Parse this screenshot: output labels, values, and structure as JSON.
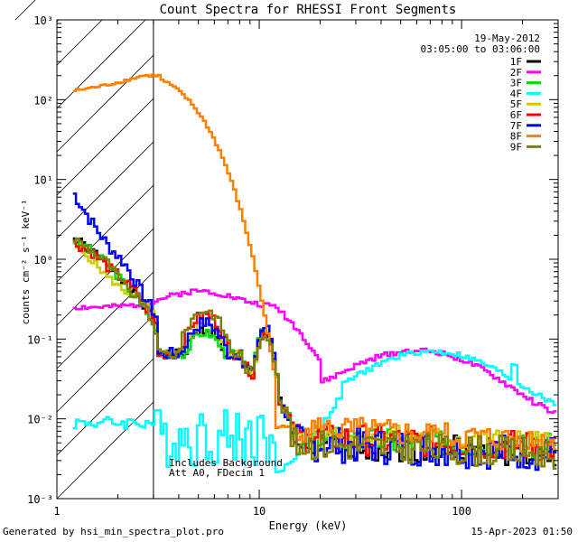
{
  "chart_data": {
    "type": "line",
    "title": "Count Spectra for RHESSI Front Segments",
    "xlabel": "Energy (keV)",
    "ylabel": "counts cm⁻² s⁻¹ keV⁻¹",
    "xscale": "log",
    "yscale": "log",
    "xlim": [
      1,
      300
    ],
    "ylim": [
      0.001,
      1000
    ],
    "x_tick_labels": [
      "1",
      "10",
      "100"
    ],
    "y_tick_labels": [
      "10⁻³",
      "10⁻²",
      "10⁻¹",
      "10⁰",
      "10¹",
      "10²",
      "10³"
    ],
    "date": "19-May-2012",
    "time_range": "03:05:00 to 03:06:00",
    "excluded_region_max_kev": 3,
    "annotations": [
      "Includes Background",
      "Att A0, FDecim 1"
    ],
    "legend_position": "top-right",
    "series": [
      {
        "name": "1F",
        "color": "#000000",
        "shape": "main",
        "low": [
          1.8,
          1.3,
          0.9,
          0.55,
          0.3,
          0.15
        ],
        "bump": 0.13,
        "peak": 0.12,
        "tail": 0.005,
        "noise": 0.28,
        "seed": 1
      },
      {
        "name": "2F",
        "color": "#ff00ff",
        "shape": "flat",
        "seed": 2
      },
      {
        "name": "3F",
        "color": "#00dd00",
        "shape": "main",
        "low": [
          1.7,
          1.3,
          0.85,
          0.5,
          0.28,
          0.13
        ],
        "bump": 0.12,
        "peak": 0.13,
        "tail": 0.006,
        "noise": 0.25,
        "seed": 3
      },
      {
        "name": "4F",
        "color": "#00ffff",
        "shape": "cyan",
        "seed": 4
      },
      {
        "name": "5F",
        "color": "#cccc00",
        "shape": "main",
        "low": [
          1.5,
          1.0,
          0.6,
          0.4,
          0.32,
          0.17
        ],
        "bump": 0.16,
        "peak": 0.12,
        "tail": 0.007,
        "noise": 0.2,
        "seed": 5
      },
      {
        "name": "6F",
        "color": "#ff0000",
        "shape": "main",
        "low": [
          1.6,
          1.25,
          0.8,
          0.55,
          0.32,
          0.14
        ],
        "bump": 0.2,
        "peak": 0.13,
        "tail": 0.006,
        "noise": 0.3,
        "seed": 6
      },
      {
        "name": "7F",
        "color": "#0000ff",
        "shape": "main",
        "low": [
          6.5,
          3.0,
          1.5,
          0.9,
          0.4,
          0.18
        ],
        "bump": 0.16,
        "peak": 0.14,
        "tail": 0.005,
        "noise": 0.35,
        "seed": 7
      },
      {
        "name": "8F",
        "color": "#ff8000",
        "shape": "orange",
        "seed": 8
      },
      {
        "name": "9F",
        "color": "#808000",
        "shape": "main",
        "low": [
          1.8,
          1.3,
          0.9,
          0.45,
          0.3,
          0.12
        ],
        "bump": 0.23,
        "peak": 0.12,
        "tail": 0.005,
        "noise": 0.3,
        "seed": 9
      }
    ]
  },
  "footer": {
    "generated_by": "Generated by hsi_min_spectra_plot.pro",
    "timestamp": "15-Apr-2023 01:50"
  }
}
